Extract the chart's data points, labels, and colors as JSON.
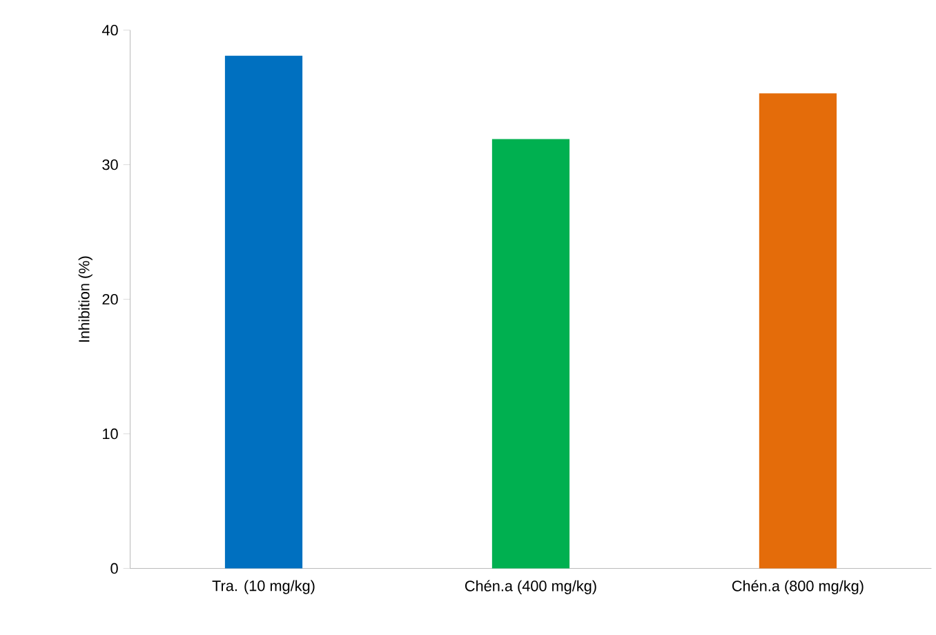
{
  "chart_data": {
    "type": "bar",
    "ylabel": "Inhibition (%)",
    "categories": [
      "Tra. (10 mg/kg)",
      "Chén.a (400 mg/kg)",
      "Chén.a (800 mg/kg)"
    ],
    "values": [
      38.1,
      31.9,
      35.3
    ],
    "colors": [
      "#0070c0",
      "#00b050",
      "#e46c0a"
    ],
    "ylim": [
      0,
      40
    ],
    "yticks": [
      0,
      10,
      20,
      30,
      40
    ]
  }
}
